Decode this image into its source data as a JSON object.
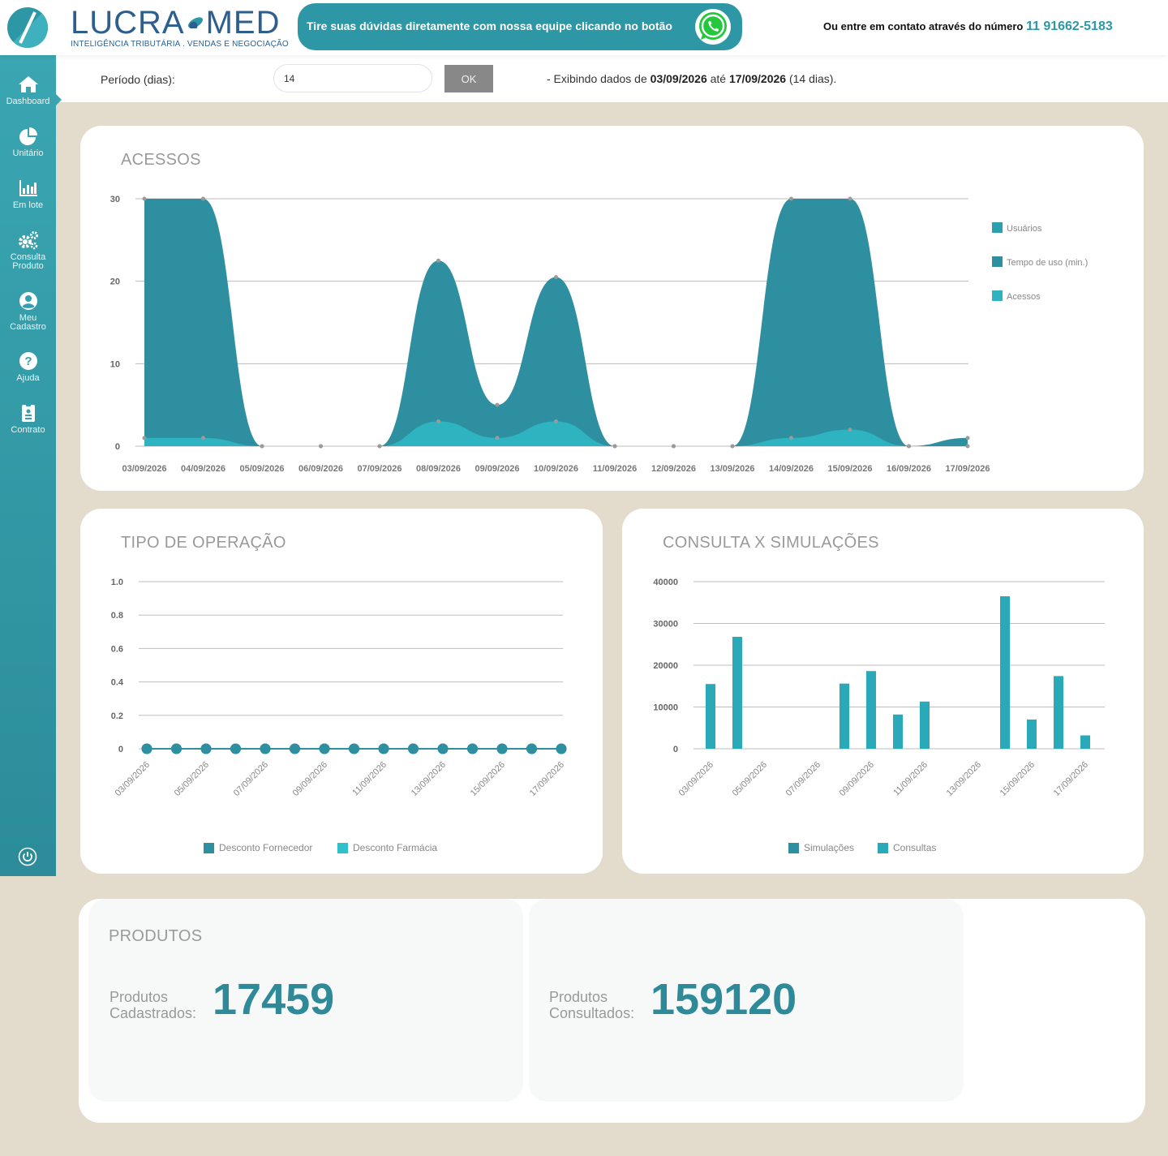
{
  "header": {
    "brand_name_left": "LUCRA",
    "brand_name_right": "MED",
    "brand_tagline": "INTELIGÊNCIA TRIBUTÁRIA . VENDAS E NEGOCIAÇÃO",
    "promo_text": "Tire suas dúvidas diretamente com nossa equipe clicando no botão",
    "contact_text": "Ou entre em contato através do número",
    "contact_phone": "11 91662-5183"
  },
  "sidebar": {
    "items": [
      {
        "label": "Dashboard",
        "icon": "home-icon"
      },
      {
        "label": "Unitário",
        "icon": "pie-chart-icon"
      },
      {
        "label": "Em lote",
        "icon": "bar-chart-icon"
      },
      {
        "label": "Consulta",
        "label2": "Produto",
        "icon": "gears-icon"
      },
      {
        "label": "Meu",
        "label2": "Cadastro",
        "icon": "user-icon"
      },
      {
        "label": "Ajuda",
        "icon": "help-icon"
      },
      {
        "label": "Contrato",
        "icon": "contract-icon"
      }
    ],
    "logout_icon": "power-icon"
  },
  "filter": {
    "label": "Período (dias):",
    "value": "14",
    "ok_label": "OK",
    "info_prefix": "- Exibindo dados de",
    "date_from": "03/09/2026",
    "info_mid": "até",
    "date_to": "17/09/2026",
    "info_suffix": "(14 dias)."
  },
  "colors": {
    "primary": "#2e97a5",
    "dark_teal": "#2f8fa0",
    "light_teal": "#2fb5c2",
    "brand_blue": "#2c5f8e",
    "background": "#e3dccd"
  },
  "chart_data": [
    {
      "type": "area",
      "title": "ACESSOS",
      "categories": [
        "03/09/2026",
        "04/09/2026",
        "05/09/2026",
        "06/09/2026",
        "07/09/2026",
        "08/09/2026",
        "09/09/2026",
        "10/09/2026",
        "11/09/2026",
        "12/09/2026",
        "13/09/2026",
        "14/09/2026",
        "15/09/2026",
        "16/09/2026",
        "17/09/2026"
      ],
      "ylim": [
        0,
        30
      ],
      "yticks": [
        0,
        10,
        20,
        30
      ],
      "grid": true,
      "legend": "right",
      "series": [
        {
          "name": "Usuários",
          "color": "#2a9fae",
          "values": [
            0,
            0,
            0,
            0,
            0,
            0,
            0,
            0,
            0,
            0,
            0,
            0,
            0,
            0,
            0
          ]
        },
        {
          "name": "Tempo de uso (min.)",
          "color": "#2e8fa1",
          "values": [
            30,
            30,
            0,
            0,
            0,
            22.5,
            5,
            20.5,
            0,
            0,
            0,
            30,
            30,
            0,
            1
          ]
        },
        {
          "name": "Acessos",
          "color": "#2db4c0",
          "values": [
            1,
            1,
            0,
            0,
            0,
            3,
            1,
            3,
            0,
            0,
            0,
            1,
            2,
            0,
            0
          ]
        }
      ]
    },
    {
      "type": "line",
      "title": "TIPO DE OPERAÇÃO",
      "categories": [
        "03/09/2026",
        "04/09/2026",
        "05/09/2026",
        "06/09/2026",
        "07/09/2026",
        "08/09/2026",
        "09/09/2026",
        "10/09/2026",
        "11/09/2026",
        "12/09/2026",
        "13/09/2026",
        "14/09/2026",
        "15/09/2026",
        "16/09/2026",
        "17/09/2026"
      ],
      "xtick_labels": [
        "03/09/2026",
        "05/09/2026",
        "07/09/2026",
        "09/09/2026",
        "11/09/2026",
        "13/09/2026",
        "15/09/2026",
        "17/09/2026"
      ],
      "ylim": [
        0,
        1
      ],
      "yticks": [
        "0",
        "0.2",
        "0.4",
        "0.6",
        "0.8",
        "1.0"
      ],
      "grid": true,
      "legend": "bottom",
      "series": [
        {
          "name": "Desconto Fornecedor",
          "color": "#2e8fa1",
          "values": [
            0,
            0,
            0,
            0,
            0,
            0,
            0,
            0,
            0,
            0,
            0,
            0,
            0,
            0,
            0
          ]
        },
        {
          "name": "Desconto Farmácia",
          "color": "#2fc0cc",
          "values": [
            0,
            0,
            0,
            0,
            0,
            0,
            0,
            0,
            0,
            0,
            0,
            0,
            0,
            0,
            0
          ]
        }
      ]
    },
    {
      "type": "bar",
      "title": "CONSULTA X SIMULAÇÕES",
      "categories": [
        "03/09/2026",
        "04/09/2026",
        "05/09/2026",
        "06/09/2026",
        "07/09/2026",
        "08/09/2026",
        "09/09/2026",
        "10/09/2026",
        "11/09/2026",
        "12/09/2026",
        "13/09/2026",
        "14/09/2026",
        "15/09/2026",
        "16/09/2026",
        "17/09/2026"
      ],
      "xtick_labels": [
        "03/09/2026",
        "05/09/2026",
        "07/09/2026",
        "09/09/2026",
        "11/09/2026",
        "13/09/2026",
        "15/09/2026",
        "17/09/2026"
      ],
      "ylim": [
        0,
        40000
      ],
      "yticks": [
        0,
        10000,
        20000,
        30000,
        40000
      ],
      "grid": true,
      "legend": "bottom",
      "series": [
        {
          "name": "Simulações",
          "color": "#2e8fa1",
          "values": [
            0,
            0,
            0,
            0,
            0,
            0,
            0,
            0,
            0,
            0,
            0,
            0,
            0,
            0,
            0
          ]
        },
        {
          "name": "Consultas",
          "color": "#2aaab8",
          "values": [
            15500,
            26800,
            0,
            0,
            0,
            15600,
            18600,
            8200,
            11300,
            0,
            0,
            36500,
            7000,
            17400,
            3200
          ]
        }
      ]
    }
  ],
  "produtos": {
    "title": "PRODUTOS",
    "cadastrados_label1": "Produtos",
    "cadastrados_label2": "Cadastrados:",
    "cadastrados_value": "17459",
    "consultados_label1": "Produtos",
    "consultados_label2": "Consultados:",
    "consultados_value": "159120"
  }
}
